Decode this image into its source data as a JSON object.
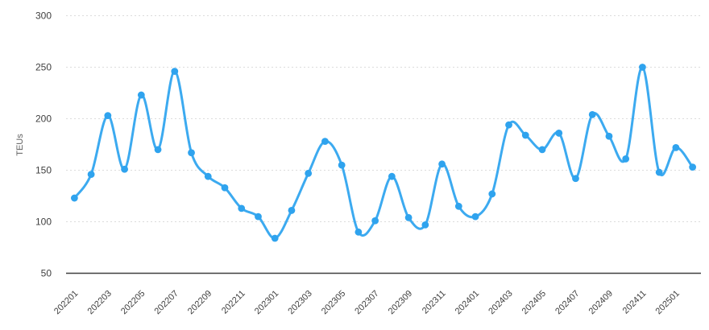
{
  "chart_data": {
    "type": "line",
    "title": "",
    "xlabel": "",
    "ylabel": "TEUs",
    "x": [
      "202201",
      "202202",
      "202203",
      "202204",
      "202205",
      "202206",
      "202207",
      "202208",
      "202209",
      "202210",
      "202211",
      "202212",
      "202301",
      "202302",
      "202303",
      "202304",
      "202305",
      "202306",
      "202307",
      "202308",
      "202309",
      "202310",
      "202311",
      "202312",
      "202401",
      "202402",
      "202403",
      "202404",
      "202405",
      "202406",
      "202407",
      "202408",
      "202409",
      "202410",
      "202411",
      "202412",
      "202501",
      "202502"
    ],
    "values": [
      123,
      146,
      203,
      151,
      223,
      170,
      246,
      167,
      144,
      133,
      113,
      105,
      84,
      111,
      147,
      178,
      155,
      90,
      101,
      144,
      104,
      97,
      156,
      115,
      105,
      127,
      194,
      184,
      170,
      186,
      142,
      204,
      183,
      161,
      250,
      148,
      172,
      153
    ],
    "yticks": [
      50,
      100,
      150,
      200,
      250,
      300
    ],
    "ylim": [
      50,
      300
    ],
    "x_tick_every": 2,
    "grid": true,
    "legend": "none",
    "colors": {
      "line": "#3caaf0",
      "dot": "#2fa3ee",
      "grid": "#dcdcdc",
      "axis_line": "#3f3f3f",
      "tick_text": "#404040",
      "ylabel_text": "#5f5f5f",
      "background": "#ffffff"
    }
  }
}
